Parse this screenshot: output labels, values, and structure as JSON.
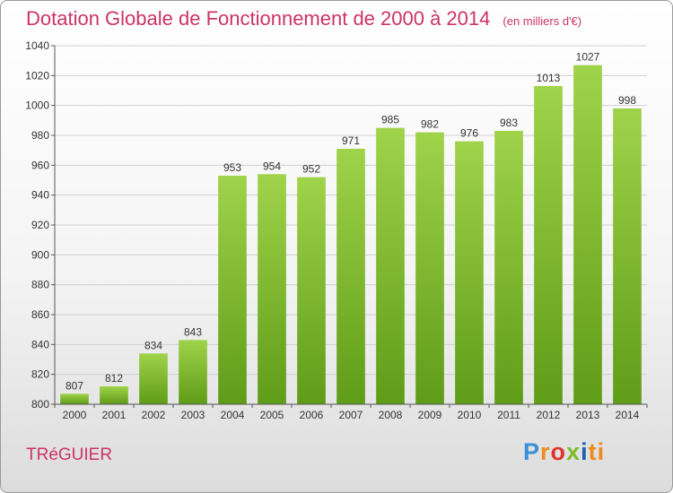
{
  "title": "Dotation Globale de Fonctionnement de 2000 à 2014",
  "unit_note": "(en milliers d'€)",
  "commune": "TRéGUIER",
  "logo": {
    "letters": [
      "P",
      "r",
      "o",
      "x",
      "i",
      "ti"
    ],
    "colors": [
      "#3a8fd6",
      "#f08a1c",
      "#e2342f",
      "#7cbb2a",
      "#1c5fb0",
      "#f08a1c"
    ]
  },
  "colors": {
    "bar_light": "#9fd34a",
    "bar_dark": "#5f9c18",
    "title": "#cc3366",
    "grid": "#d0d0d0"
  },
  "chart_data": {
    "type": "bar",
    "title": "Dotation Globale de Fonctionnement de 2000 à 2014",
    "subtitle": "(en milliers d'€)",
    "xlabel": "",
    "ylabel": "",
    "categories": [
      "2000",
      "2001",
      "2002",
      "2003",
      "2004",
      "2005",
      "2006",
      "2007",
      "2008",
      "2009",
      "2010",
      "2011",
      "2012",
      "2013",
      "2014"
    ],
    "values": [
      807,
      812,
      834,
      843,
      953,
      954,
      952,
      971,
      985,
      982,
      976,
      983,
      1013,
      1027,
      998
    ],
    "ylim": [
      800,
      1040
    ],
    "yticks": [
      800,
      820,
      840,
      860,
      880,
      900,
      920,
      940,
      960,
      980,
      1000,
      1020,
      1040
    ],
    "grid": true,
    "legend": "none",
    "data_labels": true
  }
}
